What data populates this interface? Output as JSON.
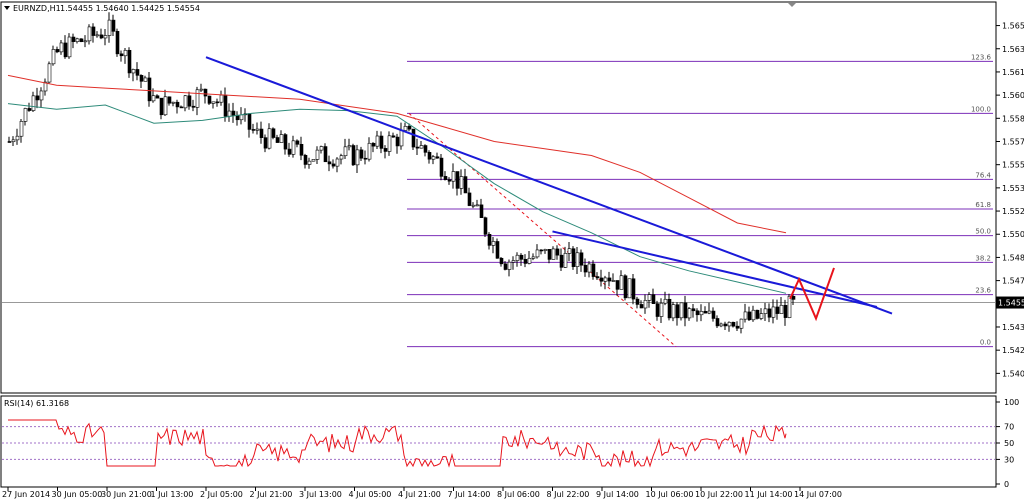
{
  "header": {
    "symbol": "EURNZD,H1",
    "ohlc": "1.54455 1.54640 1.54425 1.54554"
  },
  "colors": {
    "background": "#ffffff",
    "candle": "#000000",
    "ma_fast": "#2e8b7a",
    "ma_slow": "#e0302a",
    "trendline": "#1a1ad8",
    "fibonacci": "#7b2fb8",
    "projection": "#e8141c",
    "rsi": "#e8141c",
    "current_price_bg": "#000000"
  },
  "price_axis": {
    "ticks": [
      "1.56525",
      "1.56360",
      "1.56195",
      "1.56030",
      "1.55865",
      "1.55700",
      "1.55535",
      "1.55370",
      "1.55205",
      "1.55040",
      "1.54875",
      "1.54710",
      "1.54545",
      "1.54380",
      "1.54215",
      "1.54050"
    ],
    "current_price": "1.54554"
  },
  "fibonacci": {
    "levels": [
      {
        "label": "123.6",
        "price": 1.5627
      },
      {
        "label": "100.0",
        "price": 1.559
      },
      {
        "label": "76.4",
        "price": 1.5543
      },
      {
        "label": "61.8",
        "price": 1.5522
      },
      {
        "label": "50.0",
        "price": 1.5503
      },
      {
        "label": "38.2",
        "price": 1.5484
      },
      {
        "label": "23.6",
        "price": 1.5461
      },
      {
        "label": "0.0",
        "price": 1.5424
      }
    ]
  },
  "x_axis": {
    "labels": [
      "27 Jun 2014",
      "30 Jun 05:00",
      "30 Jun 21:00",
      "1 Jul 13:00",
      "2 Jul 05:00",
      "2 Jul 21:00",
      "3 Jul 13:00",
      "4 Jul 05:00",
      "4 Jul 21:00",
      "7 Jul 14:00",
      "8 Jul 06:00",
      "8 Jul 22:00",
      "9 Jul 14:00",
      "10 Jul 06:00",
      "10 Jul 22:00",
      "11 Jul 14:00",
      "14 Jul 07:00"
    ]
  },
  "rsi": {
    "title": "RSI(14) 61.3168",
    "ticks": [
      "100",
      "70",
      "50",
      "30",
      "0"
    ],
    "levels": [
      70,
      50,
      30
    ]
  },
  "chart_data": {
    "type": "line",
    "title": "EURNZD,H1",
    "timeframe": "H1",
    "ylim": [
      1.5396,
      1.5665
    ],
    "current_price": 1.54554,
    "ohlc_last": {
      "open": 1.54455,
      "high": 1.5464,
      "low": 1.54425,
      "close": 1.54554
    },
    "series": [
      {
        "name": "",
        "kind": "price",
        "x": [
          "27 Jun 2014",
          "30 Jun 05:00",
          "30 Jun 21:00",
          "1 Jul 13:00",
          "2 Jul 05:00",
          "2 Jul 21:00",
          "3 Jul 13:00",
          "4 Jul 05:00",
          "4 Jul 21:00",
          "7 Jul 14:00",
          "8 Jul 06:00",
          "8 Jul 22:00",
          "9 Jul 14:00",
          "10 Jul 06:00",
          "10 Jul 22:00",
          "11 Jul 14:00",
          "14 Jul 07:00"
        ],
        "values": [
          1.557,
          1.5635,
          1.565,
          1.5595,
          1.5605,
          1.5575,
          1.556,
          1.556,
          1.5575,
          1.5545,
          1.5485,
          1.549,
          1.5478,
          1.5452,
          1.5445,
          1.5443,
          1.5455
        ]
      },
      {
        "name": "",
        "kind": "moving_average_fast",
        "values": [
          1.5597,
          1.5593,
          1.5596,
          1.5583,
          1.5585,
          1.559,
          1.5593,
          1.5592,
          1.5588,
          1.5565,
          1.554,
          1.552,
          1.5505,
          1.5488,
          1.5478,
          1.547,
          1.5462
        ]
      },
      {
        "name": "",
        "kind": "moving_average_slow",
        "values": [
          1.5617,
          1.561,
          1.5608,
          1.5606,
          1.5604,
          1.5602,
          1.56,
          1.5595,
          1.559,
          1.558,
          1.557,
          1.5565,
          1.556,
          1.5548,
          1.553,
          1.5512,
          1.5505
        ]
      }
    ],
    "trendlines": [
      {
        "from": [
          "2 Jul 05:00",
          1.563
        ],
        "to": [
          "14 Jul 07:00",
          1.5472
        ]
      },
      {
        "from": [
          "8 Jul 22:00",
          1.5506
        ],
        "to": [
          "14 Jul 07:00",
          1.5465
        ]
      }
    ],
    "fibonacci_levels": [
      123.6,
      100.0,
      76.4,
      61.8,
      50.0,
      38.2,
      23.6,
      0.0
    ],
    "rsi": {
      "period": 14,
      "last": 61.3168,
      "ylim": [
        0,
        100
      ],
      "levels": [
        70,
        50,
        30
      ]
    }
  }
}
